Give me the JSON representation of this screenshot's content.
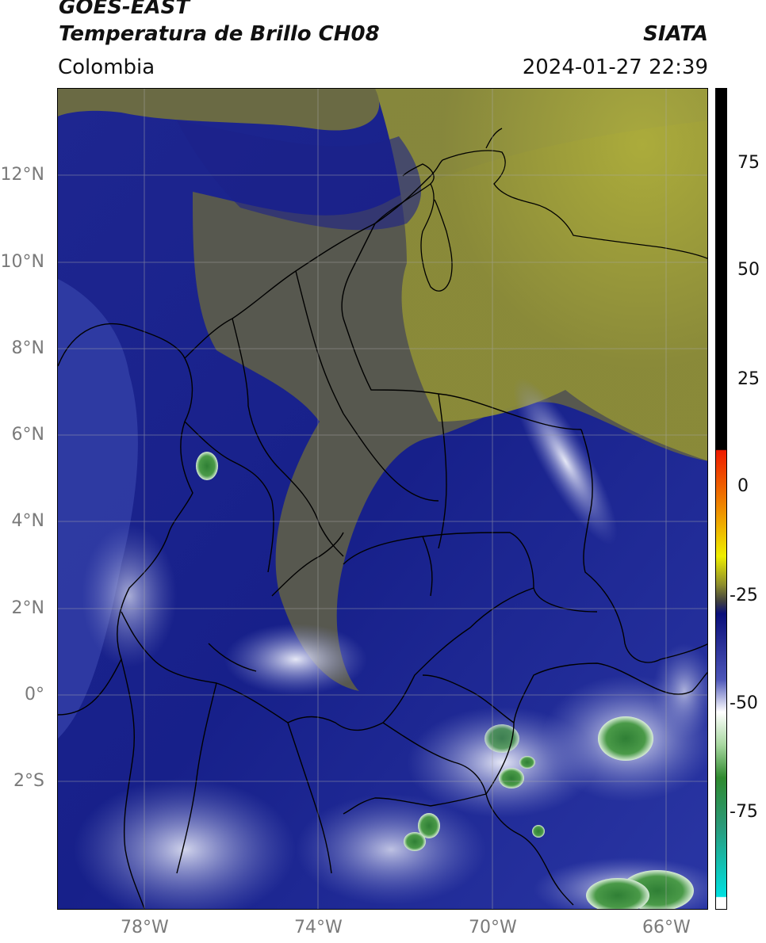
{
  "header": {
    "satellite": "GOES-EAST",
    "product": "Temperatura de Brillo CH08",
    "org": "SIATA",
    "region": "Colombia",
    "datetime": "2024-01-27 22:39"
  },
  "axes": {
    "lat_labels": [
      "12°N",
      "10°N",
      "8°N",
      "6°N",
      "4°N",
      "2°N",
      "0°",
      "2°S"
    ],
    "lon_labels": [
      "78°W",
      "74°W",
      "70°W",
      "66°W"
    ]
  },
  "colorbar": {
    "ticks": [
      "75",
      "50",
      "25",
      "0",
      "-25",
      "-50",
      "-75"
    ],
    "colors": {
      "black": "#000000",
      "red": "#ee2200",
      "yellow": "#e8e800",
      "olive": "#8c8c2c",
      "navy": "#0a0f7a",
      "white": "#ffffff",
      "green": "#2f8a2f",
      "cyan": "#00e0e0"
    }
  },
  "map": {
    "colors": {
      "navy": "#16208a",
      "blue": "#2b36a2",
      "olive": "#6c6c3a",
      "yellow": "#a8a83a",
      "cloud": "#b4b8e4",
      "green": "#3c8a3c",
      "border": "#000000",
      "grid": "#aaaaaa"
    }
  }
}
